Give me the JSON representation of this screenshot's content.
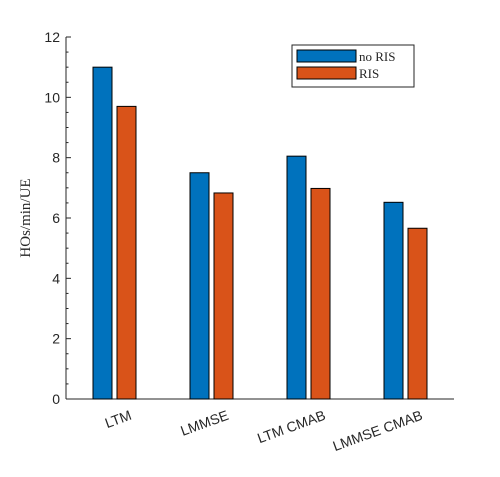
{
  "chart_data": {
    "type": "bar",
    "title": "",
    "xlabel": "",
    "ylabel": "HOs/min/UE",
    "categories": [
      "LTM",
      "LMMSE",
      "LTM CMAB",
      "LMMSE CMAB"
    ],
    "series": [
      {
        "name": "no RIS",
        "color": "#0072BD",
        "values": [
          11.0,
          7.5,
          8.05,
          6.52
        ]
      },
      {
        "name": "RIS",
        "color": "#D95319",
        "values": [
          9.7,
          6.83,
          6.98,
          5.66
        ]
      }
    ],
    "ylim": [
      0,
      12
    ],
    "yticks": [
      0,
      2,
      4,
      6,
      8,
      10,
      12
    ],
    "grid": false,
    "legend_position": "top-right"
  }
}
